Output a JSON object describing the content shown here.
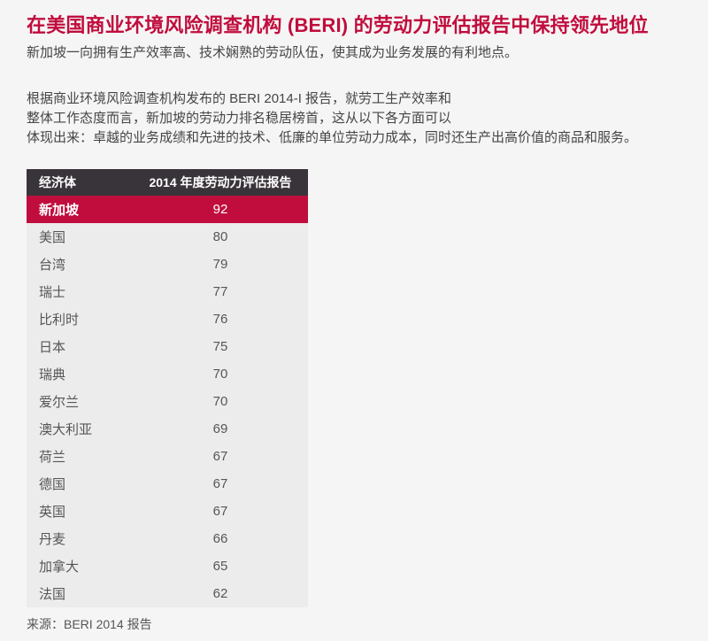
{
  "colors": {
    "accent_red": "#c00d3d",
    "table_header_dark": "#393439",
    "table_body_bg": "#ececec",
    "page_bg": "#f6f5f5",
    "body_text": "#454545"
  },
  "header": {
    "title": "在美国商业环境风险调查机构 (BERI) 的劳动力评估报告中保持领先地位",
    "subtitle": "新加坡一向拥有生产效率高、技术娴熟的劳动队伍，使其成为业务发展的有利地点。"
  },
  "paragraph": {
    "lines": [
      "根据商业环境风险调查机构发布的 BERI 2014-I 报告，就劳工生产效率和",
      "整体工作态度而言，新加坡的劳动力排名稳居榜首，这从以下各方面可以",
      "体现出来：卓越的业务成绩和先进的技术、低廉的单位劳动力成本，同时还生产出高价值的商品和服务。"
    ]
  },
  "table": {
    "header": {
      "economy": "经济体",
      "score": "2014 年度劳动力评估报告"
    },
    "rows": [
      {
        "economy": "新加坡",
        "score": "92",
        "highlight": true
      },
      {
        "economy": "美国",
        "score": "80"
      },
      {
        "economy": "台湾",
        "score": "79"
      },
      {
        "economy": "瑞士",
        "score": "77"
      },
      {
        "economy": "比利时",
        "score": "76"
      },
      {
        "economy": "日本",
        "score": "75"
      },
      {
        "economy": "瑞典",
        "score": "70"
      },
      {
        "economy": "爱尔兰",
        "score": "70"
      },
      {
        "economy": "澳大利亚",
        "score": "69"
      },
      {
        "economy": "荷兰",
        "score": "67"
      },
      {
        "economy": "德国",
        "score": "67"
      },
      {
        "economy": "英国",
        "score": "67"
      },
      {
        "economy": "丹麦",
        "score": "66"
      },
      {
        "economy": "加拿大",
        "score": "65"
      },
      {
        "economy": "法国",
        "score": "62"
      }
    ]
  },
  "source": "来源：BERI 2014 报告",
  "chart_data": {
    "type": "table",
    "title": "2014 年度劳动力评估报告",
    "categories": [
      "新加坡",
      "美国",
      "台湾",
      "瑞士",
      "比利时",
      "日本",
      "瑞典",
      "爱尔兰",
      "澳大利亚",
      "荷兰",
      "德国",
      "英国",
      "丹麦",
      "加拿大",
      "法国"
    ],
    "values": [
      92,
      80,
      79,
      77,
      76,
      75,
      70,
      70,
      69,
      67,
      67,
      67,
      66,
      65,
      62
    ],
    "highlighted_category": "新加坡",
    "source": "来源：BERI 2014 报告"
  }
}
